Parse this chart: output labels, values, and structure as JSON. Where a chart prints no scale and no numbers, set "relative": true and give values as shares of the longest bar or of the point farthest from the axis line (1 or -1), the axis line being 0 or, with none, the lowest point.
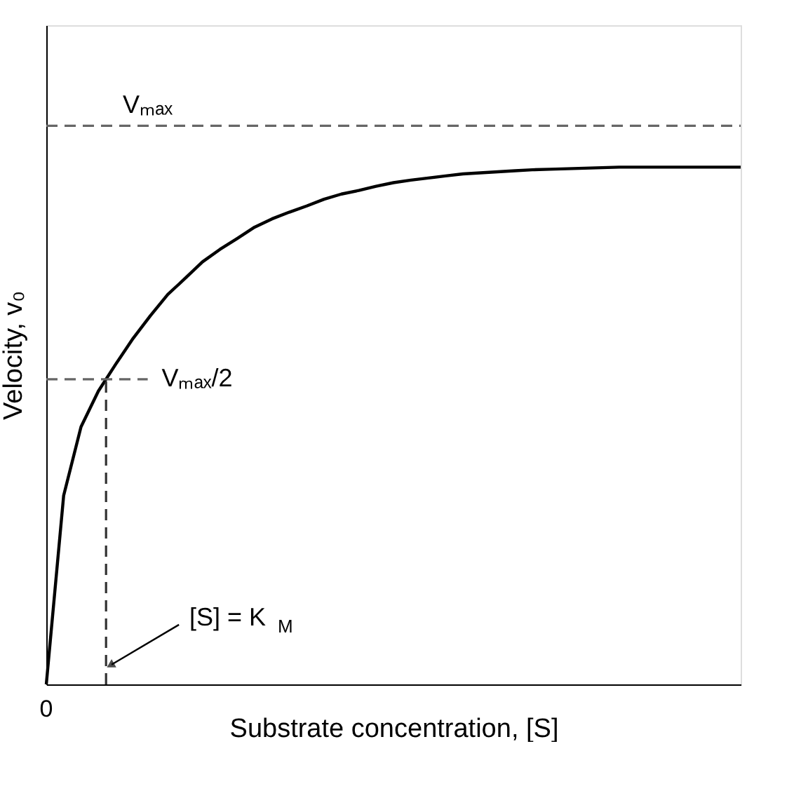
{
  "chart_data": {
    "type": "line",
    "relative": true,
    "xlabel": "Substrate concentration, [S]",
    "ylabel": "Velocity, v₀",
    "categories": [
      null,
      null,
      null,
      null,
      null,
      null,
      null,
      null,
      null,
      null,
      null,
      null,
      null,
      null,
      null,
      null,
      null,
      null,
      null,
      null,
      null,
      null,
      null,
      null,
      null,
      null,
      null,
      null,
      null,
      null,
      null,
      null,
      null,
      null,
      null,
      null,
      null,
      null,
      null,
      null,
      null
    ],
    "marker": "none",
    "line_style": "solid",
    "annotations": [
      "0",
      "[S] = K$_{M}$"
    ],
    "series": [
      {
        "color": "#000000",
        "values": [
          0,
          0.365,
          0.498,
          0.567,
          0.619,
          0.669,
          0.713,
          0.754,
          0.785,
          0.817,
          0.841,
          0.862,
          0.884,
          0.9,
          0.913,
          0.925,
          0.938,
          0.948,
          0.955,
          0.963,
          0.97,
          0.975,
          0.979,
          0.983,
          0.987,
          0.989,
          0.991,
          0.993,
          0.995,
          0.996,
          0.997,
          0.998,
          0.999,
          1.0,
          1.0,
          1.0,
          1.0,
          1.0,
          1.0,
          1.0,
          1.0
        ]
      }
    ],
    "ref_lines": [
      {
        "axis": "y",
        "value": 1.08,
        "label": "Vₘₐₓ",
        "color": "#666666",
        "line_style": "dashed"
      },
      {
        "axis": "y",
        "value": 0.59,
        "label": "Vₘₐₓ/2",
        "color": "#666666",
        "line_style": "dashed"
      }
    ]
  }
}
